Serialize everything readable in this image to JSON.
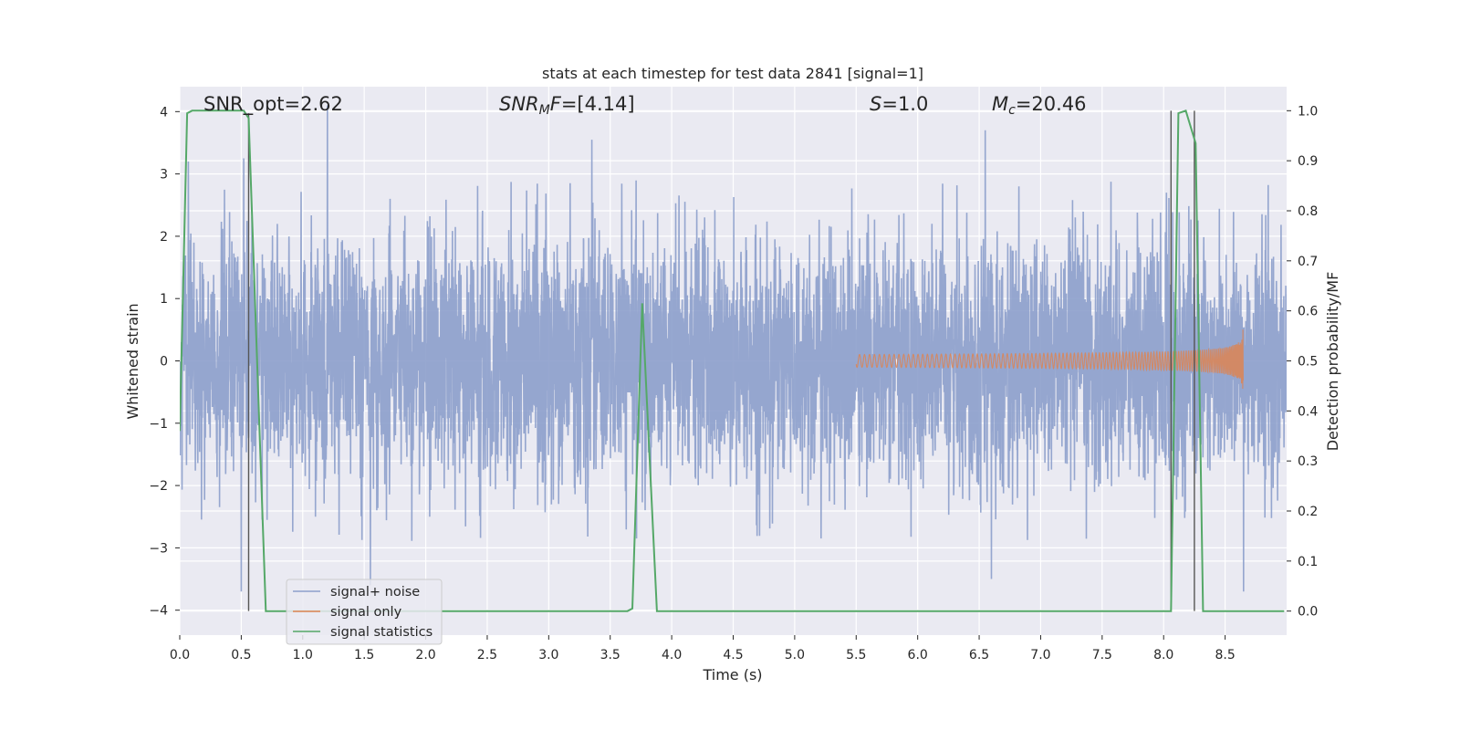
{
  "chart_data": {
    "type": "line",
    "title": "stats at each timestep for test data 2841 [signal=1]",
    "xlabel": "Time (s)",
    "ylabel": "Whitened strain",
    "y2label": "Detection probability/MF",
    "xlim": [
      0.0,
      9.0
    ],
    "ylim": [
      -4.4,
      4.4
    ],
    "y2lim": [
      -0.048,
      1.048
    ],
    "xticks": [
      "0.0",
      "0.5",
      "1.0",
      "1.5",
      "2.0",
      "2.5",
      "3.0",
      "3.5",
      "4.0",
      "4.5",
      "5.0",
      "5.5",
      "6.0",
      "6.5",
      "7.0",
      "7.5",
      "8.0",
      "8.5"
    ],
    "yticks": [
      "4",
      "3",
      "2",
      "1",
      "0",
      "−1",
      "−2",
      "−3",
      "−4"
    ],
    "y2ticks": [
      "1.0",
      "0.9",
      "0.8",
      "0.7",
      "0.6",
      "0.5",
      "0.4",
      "0.3",
      "0.2",
      "0.1",
      "0.0"
    ],
    "grid": true,
    "legend_position": "lower-left",
    "colors": {
      "noise": "#8c9fcb",
      "signal": "#dd8452",
      "stats": "#55a868",
      "vline": "#555555",
      "background": "#eaeaf2",
      "grid": "#ffffff"
    },
    "series": [
      {
        "name": "signal+ noise",
        "description_values": {
          "duration": 9.0,
          "typical_band": [
            -1.6,
            1.6
          ],
          "notable_peaks": [
            [
              0.07,
              3.2
            ],
            [
              0.52,
              3.25
            ],
            [
              1.2,
              4.1
            ],
            [
              3.35,
              3.55
            ],
            [
              6.55,
              3.7
            ],
            [
              0.5,
              -3.7
            ],
            [
              1.55,
              -3.6
            ],
            [
              6.6,
              -3.5
            ],
            [
              8.65,
              -3.7
            ]
          ]
        }
      },
      {
        "name": "signal only",
        "description_values": {
          "chirp_start": 5.5,
          "chirp_end": 8.65,
          "peak_amplitude": 0.6
        }
      },
      {
        "name": "signal statistics",
        "x": [
          0.0,
          0.06,
          0.1,
          0.52,
          0.56,
          0.7,
          3.64,
          3.68,
          3.76,
          3.88,
          8.06,
          8.12,
          8.18,
          8.26,
          8.32,
          8.98
        ],
        "y": [
          0.36,
          0.995,
          1.0,
          1.0,
          0.985,
          0.0,
          0.0,
          0.005,
          0.615,
          0.0,
          0.0,
          0.995,
          1.0,
          0.935,
          0.0,
          0.0
        ]
      }
    ],
    "vlines": [
      {
        "x": 0.56,
        "ymin": 0.0,
        "ymax": 0.995
      },
      {
        "x": 8.06,
        "ymin": 0.0,
        "ymax": 1.0
      },
      {
        "x": 8.25,
        "ymin": 0.0,
        "ymax": 1.0
      }
    ],
    "annotations": [
      {
        "text": "SNR_opt=2.62"
      },
      {
        "text": "=[4.14]",
        "label_prefix": "SNR",
        "label_sub": "M",
        "label_suffix": "F"
      },
      {
        "text": "=1.0",
        "label_prefix": "S"
      },
      {
        "text": "=20.46",
        "label_prefix": "M",
        "label_sub": "c"
      }
    ]
  }
}
